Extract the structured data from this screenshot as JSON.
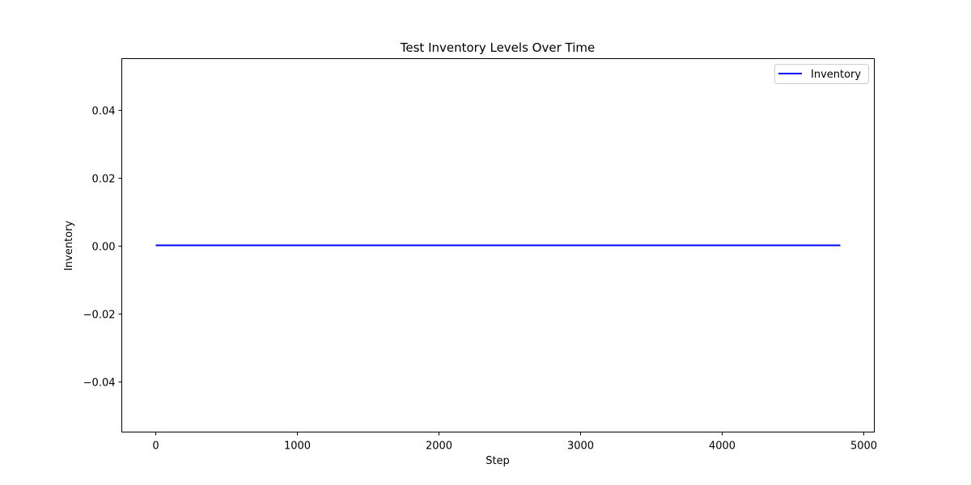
{
  "chart_data": {
    "type": "line",
    "title": "Test Inventory Levels Over Time",
    "xlabel": "Step",
    "ylabel": "Inventory",
    "xlim": [
      -240,
      5080
    ],
    "ylim": [
      -0.055,
      0.055
    ],
    "xticks": [
      0,
      1000,
      2000,
      3000,
      4000,
      5000
    ],
    "xtick_labels": [
      "0",
      "1000",
      "2000",
      "3000",
      "4000",
      "5000"
    ],
    "yticks": [
      0.04,
      0.02,
      0.0,
      -0.02,
      -0.04
    ],
    "ytick_labels": [
      "0.04",
      "0.02",
      "0.00",
      "−0.02",
      "−0.04"
    ],
    "grid": false,
    "legend_position": "top-right",
    "series": [
      {
        "name": "Inventory",
        "color": "#0000ff",
        "x": [
          0,
          4840
        ],
        "y": [
          0,
          0
        ]
      }
    ]
  }
}
